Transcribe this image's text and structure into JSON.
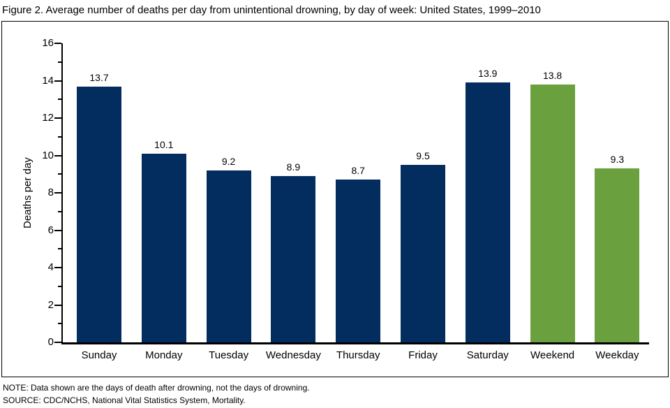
{
  "title": "Figure 2. Average number of deaths per day from unintentional drowning, by day of week: United States, 1999–2010",
  "note": "NOTE: Data shown are the days of death after drowning, not the days of drowning.",
  "source": "SOURCE: CDC/NCHS, National Vital Statistics System, Mortality.",
  "colors": {
    "day_bar": "#032d5e",
    "aggregate_bar": "#6ba03f",
    "axis": "#000000",
    "frame_border": "#000000",
    "background": "#ffffff",
    "text": "#000000"
  },
  "chart_data": {
    "type": "bar",
    "title": "Figure 2. Average number of deaths per day from unintentional drowning, by day of week: United States, 1999–2010",
    "categories": [
      "Sunday",
      "Monday",
      "Tuesday",
      "Wednesday",
      "Thursday",
      "Friday",
      "Saturday",
      "Weekend",
      "Weekday"
    ],
    "values": [
      13.7,
      10.1,
      9.2,
      8.9,
      8.7,
      9.5,
      13.9,
      13.8,
      9.3
    ],
    "bar_colors": [
      "#032d5e",
      "#032d5e",
      "#032d5e",
      "#032d5e",
      "#032d5e",
      "#032d5e",
      "#032d5e",
      "#6ba03f",
      "#6ba03f"
    ],
    "data_labels": [
      "13.7",
      "10.1",
      "9.2",
      "8.9",
      "8.7",
      "9.5",
      "13.9",
      "13.8",
      "9.3"
    ],
    "xlabel": "",
    "ylabel": "Deaths per day",
    "ylim": [
      0,
      16
    ],
    "ytick_step": 2,
    "yticks": [
      0,
      2,
      4,
      6,
      8,
      10,
      12,
      14,
      16
    ],
    "minor_tick_step": 1,
    "grid": false,
    "legend": "none"
  }
}
